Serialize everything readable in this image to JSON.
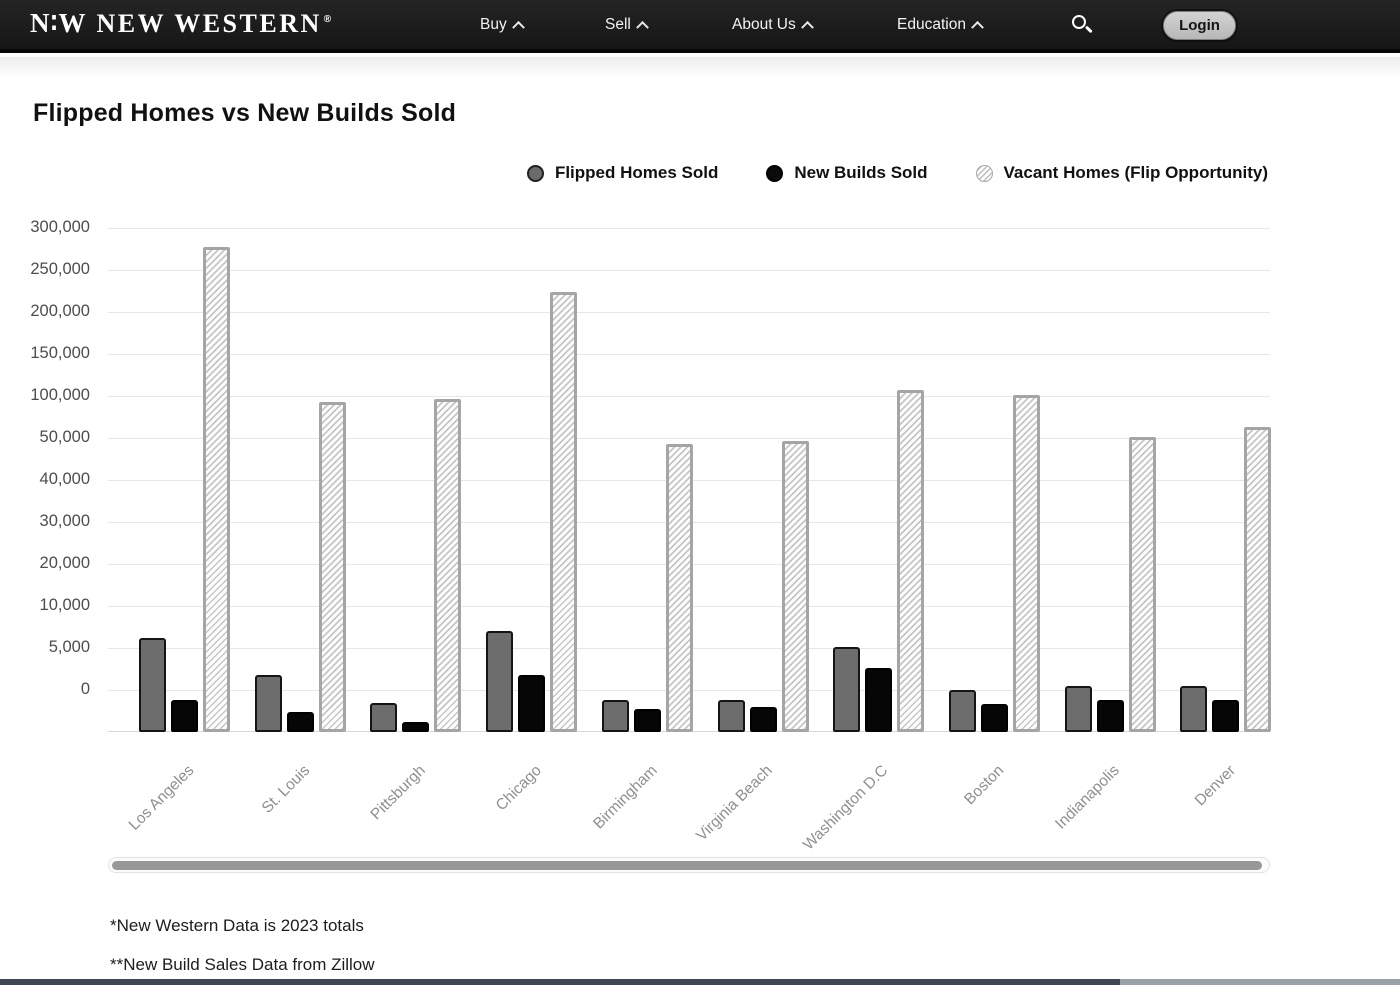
{
  "nav": {
    "brand": {
      "mark": "N∶W",
      "name": "NEW WESTERN",
      "registered": "®"
    },
    "items": [
      {
        "label": "Buy"
      },
      {
        "label": "Sell"
      },
      {
        "label": "About Us"
      },
      {
        "label": "Education"
      }
    ],
    "search_icon": "search-icon",
    "login_label": "Login"
  },
  "page": {
    "title": "Flipped Homes vs New Builds Sold"
  },
  "legend": [
    {
      "label": "Flipped Homes Sold",
      "swatch": "gray-circle",
      "color": "#6b6b6b"
    },
    {
      "label": "New Builds Sold",
      "swatch": "black-circle",
      "color": "#0a0a0a"
    },
    {
      "label": "Vacant Homes (Flip Opportunity)",
      "swatch": "hatched-circle",
      "color": "#bdbdbd"
    }
  ],
  "chart_data": {
    "type": "bar",
    "title": "Flipped Homes vs New Builds Sold",
    "xlabel": "",
    "ylabel": "",
    "grid": true,
    "legend_position": "top-right",
    "scale": "segmented-nonlinear",
    "categories": [
      "Los Angeles",
      "St. Louis",
      "Pittsburgh",
      "Chicago",
      "Birmingham",
      "Virginia Beach",
      "Washington D.C",
      "Boston",
      "Indianapolis",
      "Denver"
    ],
    "series": [
      {
        "name": "Flipped Homes Sold",
        "values": [
          6200,
          3400,
          1700,
          7000,
          1850,
          1850,
          5100,
          2500,
          2700,
          2700
        ]
      },
      {
        "name": "New Builds Sold",
        "values": [
          1850,
          1150,
          550,
          3400,
          1300,
          1450,
          3800,
          1600,
          1850,
          1900
        ]
      },
      {
        "name": "Vacant Homes (Flip Opportunity)",
        "values": [
          278000,
          93000,
          96500,
          224000,
          48500,
          49300,
          107000,
          101000,
          51200,
          63000
        ]
      }
    ],
    "y_ticks": [
      0,
      5000,
      10000,
      20000,
      30000,
      40000,
      50000,
      100000,
      150000,
      200000,
      250000,
      300000
    ],
    "y_tick_labels": [
      "0",
      "5,000",
      "10,000",
      "20,000",
      "30,000",
      "40,000",
      "50,000",
      "100,000",
      "150,000",
      "200,000",
      "250,000",
      "300,000"
    ],
    "ylim": [
      0,
      300000
    ]
  },
  "footnotes": [
    "*New Western Data is 2023 totals",
    "**New Build Sales Data from Zillow"
  ]
}
